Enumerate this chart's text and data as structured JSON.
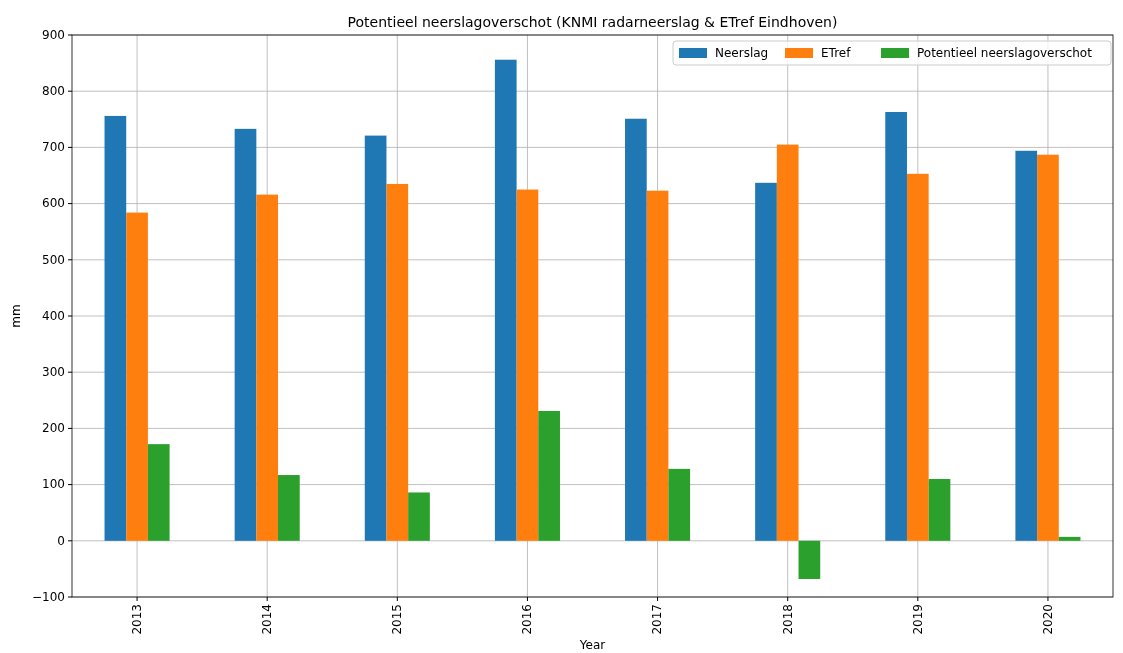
{
  "chart_data": {
    "type": "bar",
    "title": "Potentieel neerslagoverschot (KNMI radarneerslag & ETref Eindhoven)",
    "xlabel": "Year",
    "ylabel": "mm",
    "categories": [
      "2013",
      "2014",
      "2015",
      "2016",
      "2017",
      "2018",
      "2019",
      "2020"
    ],
    "series": [
      {
        "name": "Neerslag",
        "color": "#1f77b4",
        "values": [
          756,
          733,
          721,
          856,
          751,
          637,
          763,
          694
        ]
      },
      {
        "name": "ETref",
        "color": "#ff7f0e",
        "values": [
          584,
          616,
          635,
          625,
          623,
          705,
          653,
          687
        ]
      },
      {
        "name": "Potentieel neerslagoverschot",
        "color": "#2ca02c",
        "values": [
          172,
          117,
          86,
          231,
          128,
          -68,
          110,
          7
        ]
      }
    ],
    "ylim": [
      -100,
      900
    ],
    "yticks": [
      -100,
      0,
      100,
      200,
      300,
      400,
      500,
      600,
      700,
      800,
      900
    ],
    "grid": true,
    "legend": "top right"
  }
}
